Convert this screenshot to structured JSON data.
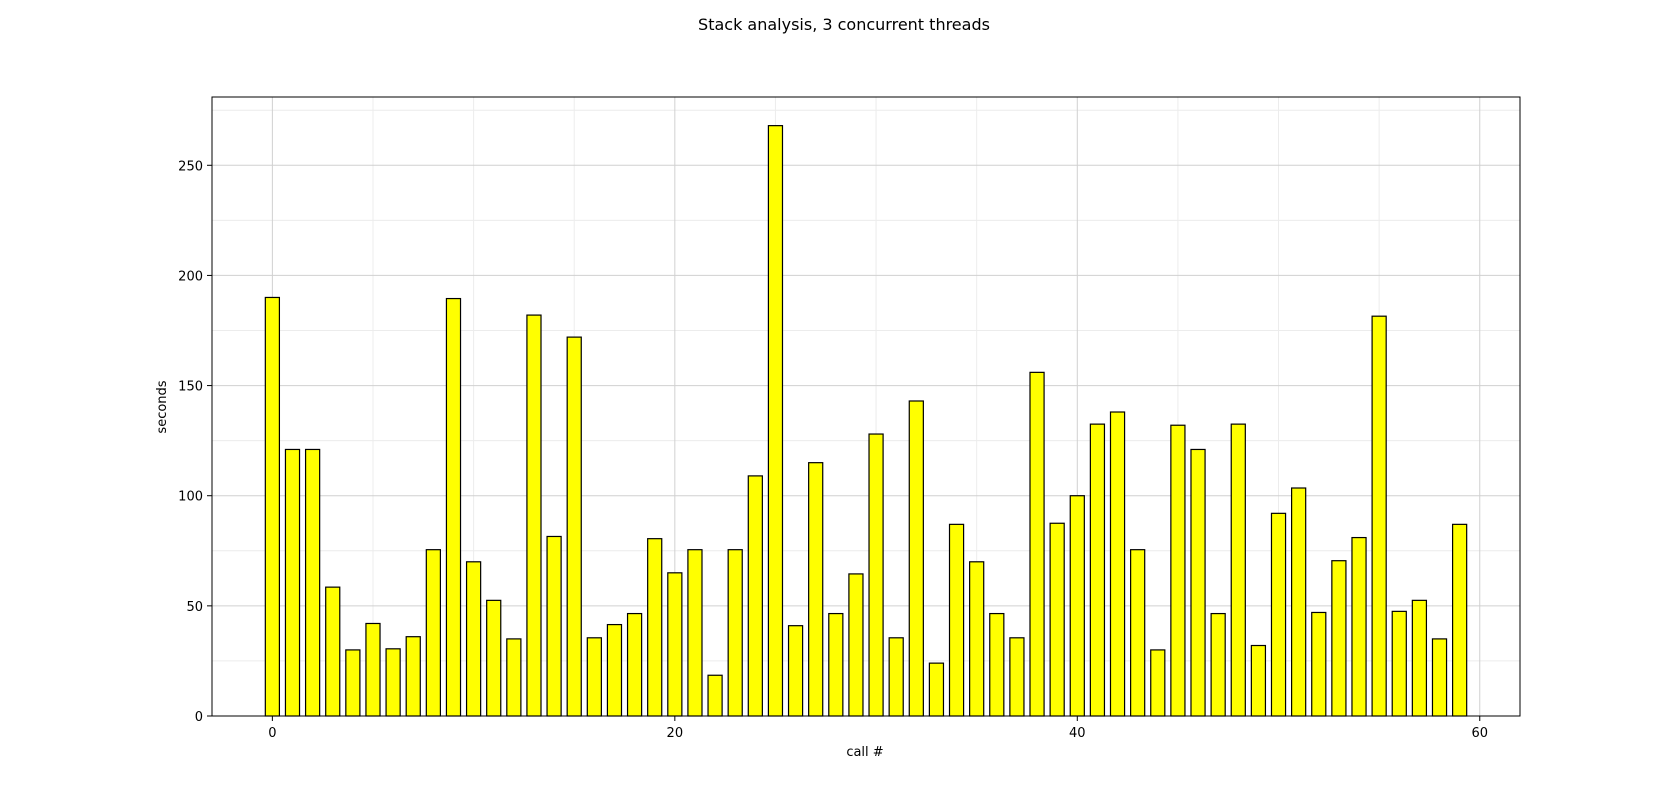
{
  "chart_data": {
    "type": "bar",
    "title": "Stack analysis, 3 concurrent threads",
    "xlabel": "call #",
    "ylabel": "seconds",
    "x": [
      0,
      1,
      2,
      3,
      4,
      5,
      6,
      7,
      8,
      9,
      10,
      11,
      12,
      13,
      14,
      15,
      16,
      17,
      18,
      19,
      20,
      21,
      22,
      23,
      24,
      25,
      26,
      27,
      28,
      29,
      30,
      31,
      32,
      33,
      34,
      35,
      36,
      37,
      38,
      39,
      40,
      41,
      42,
      43,
      44,
      45,
      46,
      47,
      48,
      49,
      50,
      51,
      52,
      53,
      54,
      55,
      56,
      57,
      58,
      59
    ],
    "values": [
      190,
      121,
      121,
      58.5,
      30,
      42,
      30.5,
      36,
      75.5,
      189.5,
      70,
      52.5,
      35,
      182,
      81.5,
      172,
      35.5,
      41.5,
      46.5,
      80.5,
      65,
      75.5,
      18.5,
      75.5,
      109,
      268,
      41,
      115,
      46.5,
      64.5,
      128,
      35.5,
      143,
      24,
      87,
      70,
      46.5,
      35.5,
      156,
      87.5,
      100,
      132.5,
      138,
      75.5,
      30,
      132,
      121,
      46.5,
      132.5,
      32,
      92,
      103.5,
      47,
      70.5,
      81,
      181.5,
      47.5,
      52.5,
      35,
      87
    ],
    "xlim": [
      -3,
      62
    ],
    "ylim": [
      0,
      281
    ],
    "xticks": [
      0,
      20,
      40,
      60
    ],
    "yticks": [
      0,
      50,
      100,
      150,
      200,
      250
    ],
    "bar_color": "#ffff00",
    "edge_color": "#000000",
    "grid": true,
    "minor_grid": true
  }
}
